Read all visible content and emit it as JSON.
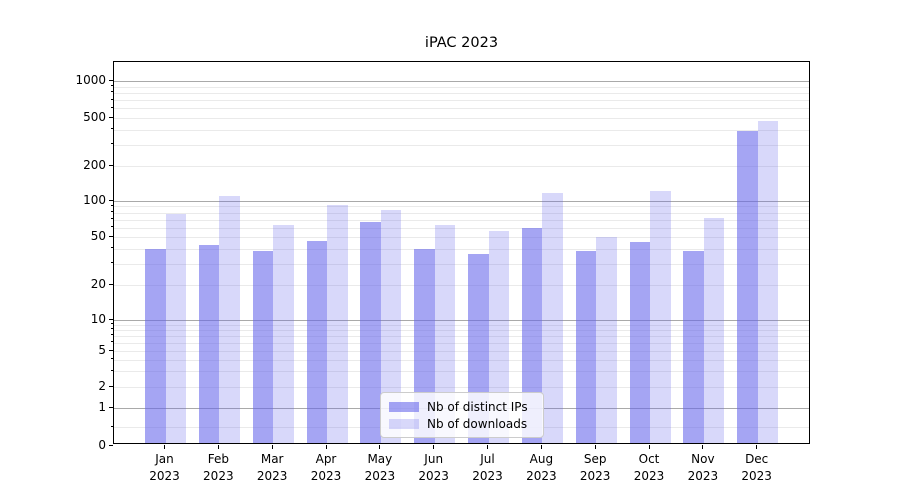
{
  "chart_data": {
    "type": "bar",
    "title": "iPAC 2023",
    "year_label": "2023",
    "categories": [
      "Jan",
      "Feb",
      "Mar",
      "Apr",
      "May",
      "Jun",
      "Jul",
      "Aug",
      "Sep",
      "Oct",
      "Nov",
      "Dec"
    ],
    "series": [
      {
        "name": "Nb of distinct IPs",
        "color": "rgba(100,100,235,0.58)",
        "values": [
          38,
          41,
          37,
          45,
          64,
          38,
          35,
          57,
          37,
          44,
          37,
          377
        ]
      },
      {
        "name": "Nb of downloads",
        "color": "rgba(100,100,235,0.25)",
        "values": [
          75,
          107,
          61,
          89,
          81,
          61,
          54,
          113,
          48,
          117,
          70,
          457
        ]
      }
    ],
    "xlabel": "",
    "ylabel": "",
    "yscale": "symlog",
    "yticks": [
      0,
      1,
      2,
      5,
      10,
      20,
      50,
      100,
      200,
      500,
      1000
    ],
    "ylim": [
      0,
      1450
    ],
    "grid": true,
    "legend_position": "lower center",
    "background": "#ffffff"
  }
}
